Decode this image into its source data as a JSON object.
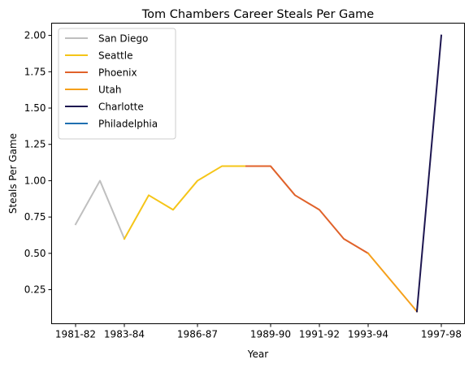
{
  "chart_data": {
    "type": "line",
    "title": "Tom Chambers  Career Steals Per Game",
    "xlabel": "Year",
    "ylabel": "Steals Per Game",
    "categories": [
      "1981-82",
      "1982-83",
      "1983-84",
      "1984-85",
      "1985-86",
      "1986-87",
      "1987-88",
      "1988-89",
      "1989-90",
      "1990-91",
      "1991-92",
      "1992-93",
      "1993-94",
      "1994-95",
      "1995-96",
      "1997-98"
    ],
    "x_tick_labels": [
      "1981-82",
      "1983-84",
      "1986-87",
      "1989-90",
      "1991-92",
      "1993-94",
      "1997-98"
    ],
    "x_tick_categories": [
      "1981-82",
      "1983-84",
      "1986-87",
      "1989-90",
      "1991-92",
      "1993-94",
      "1997-98"
    ],
    "y_ticks": [
      0.25,
      0.5,
      0.75,
      1.0,
      1.25,
      1.5,
      1.75,
      2.0
    ],
    "y_tick_labels": [
      "0.25",
      "0.50",
      "0.75",
      "1.00",
      "1.25",
      "1.50",
      "1.75",
      "2.00"
    ],
    "ylim": [
      0.0155,
      2.0845
    ],
    "legend_position": "upper left",
    "grid": false,
    "series": [
      {
        "name": "San Diego",
        "color": "#bfbfbf",
        "points": [
          [
            "1981-82",
            0.7
          ],
          [
            "1982-83",
            1.0
          ],
          [
            "1983-84",
            0.6
          ]
        ]
      },
      {
        "name": "Seattle",
        "color": "#f5c518",
        "points": [
          [
            "1983-84",
            0.6
          ],
          [
            "1984-85",
            0.9
          ],
          [
            "1985-86",
            0.8
          ],
          [
            "1986-87",
            1.0
          ],
          [
            "1987-88",
            1.1
          ],
          [
            "1988-89",
            1.1
          ]
        ]
      },
      {
        "name": "Phoenix",
        "color": "#e0622a",
        "points": [
          [
            "1988-89",
            1.1
          ],
          [
            "1989-90",
            1.1
          ],
          [
            "1990-91",
            0.9
          ],
          [
            "1991-92",
            0.8
          ],
          [
            "1992-93",
            0.6
          ],
          [
            "1993-94",
            0.5
          ]
        ]
      },
      {
        "name": "Utah",
        "color": "#f5a01b",
        "points": [
          [
            "1993-94",
            0.5
          ],
          [
            "1994-95",
            0.3
          ],
          [
            "1995-96",
            0.1
          ]
        ]
      },
      {
        "name": "Charlotte",
        "color": "#1d1650",
        "points": [
          [
            "1995-96",
            0.1
          ],
          [
            "1997-98",
            2.0
          ]
        ]
      },
      {
        "name": "Philadelphia",
        "color": "#1f6fb0",
        "points": []
      }
    ]
  }
}
